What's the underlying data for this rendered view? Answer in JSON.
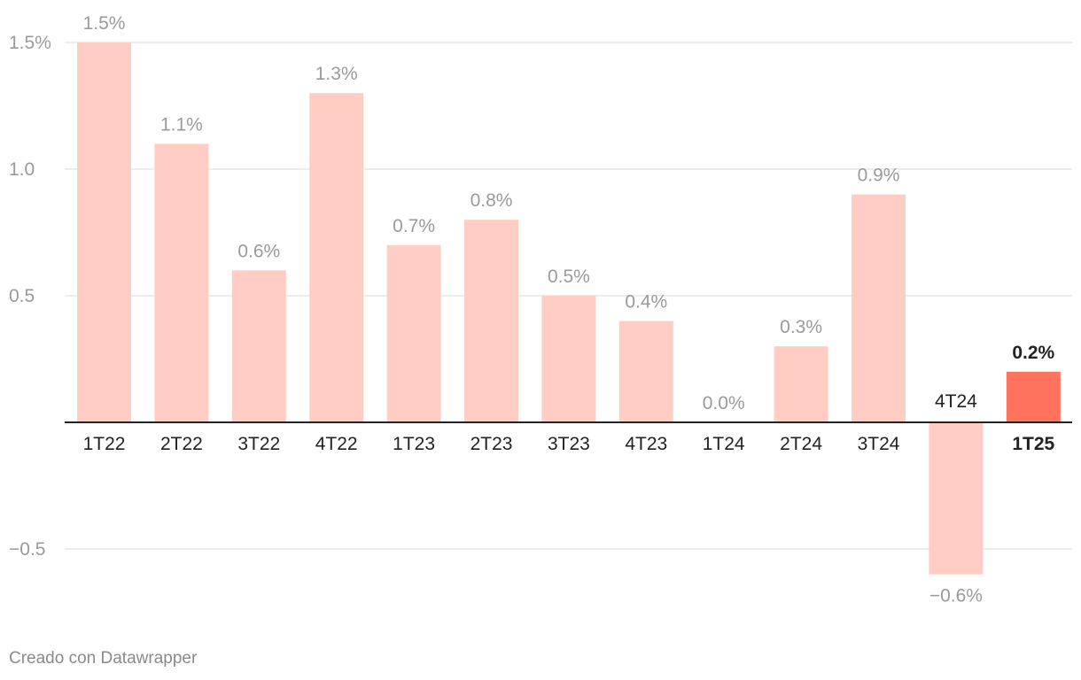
{
  "chart_data": {
    "type": "bar",
    "categories": [
      "1T22",
      "2T22",
      "3T22",
      "4T22",
      "1T23",
      "2T23",
      "3T23",
      "4T23",
      "1T24",
      "2T24",
      "3T24",
      "4T24",
      "1T25"
    ],
    "values": [
      1.5,
      1.1,
      0.6,
      1.3,
      0.7,
      0.8,
      0.5,
      0.4,
      0.0,
      0.3,
      0.9,
      -0.6,
      0.2
    ],
    "value_labels": [
      "1.5%",
      "1.1%",
      "0.6%",
      "1.3%",
      "0.7%",
      "0.8%",
      "0.5%",
      "0.4%",
      "0.0%",
      "0.3%",
      "0.9%",
      "−0.6%",
      "0.2%"
    ],
    "highlight_category": "1T25",
    "y_ticks": [
      1.5,
      1.0,
      0.5,
      -0.5
    ],
    "y_tick_labels": [
      "1.5%",
      "1.0",
      "0.5",
      "−0.5"
    ],
    "ylim": [
      -0.6,
      1.5
    ],
    "grid": true,
    "colors": {
      "bar": "#ffcdc4",
      "highlight": "#ff735e",
      "grid": "#e2e2e2",
      "baseline": "#222222"
    },
    "title": "",
    "xlabel": "",
    "ylabel": ""
  },
  "footer": {
    "credit": "Creado con Datawrapper"
  }
}
